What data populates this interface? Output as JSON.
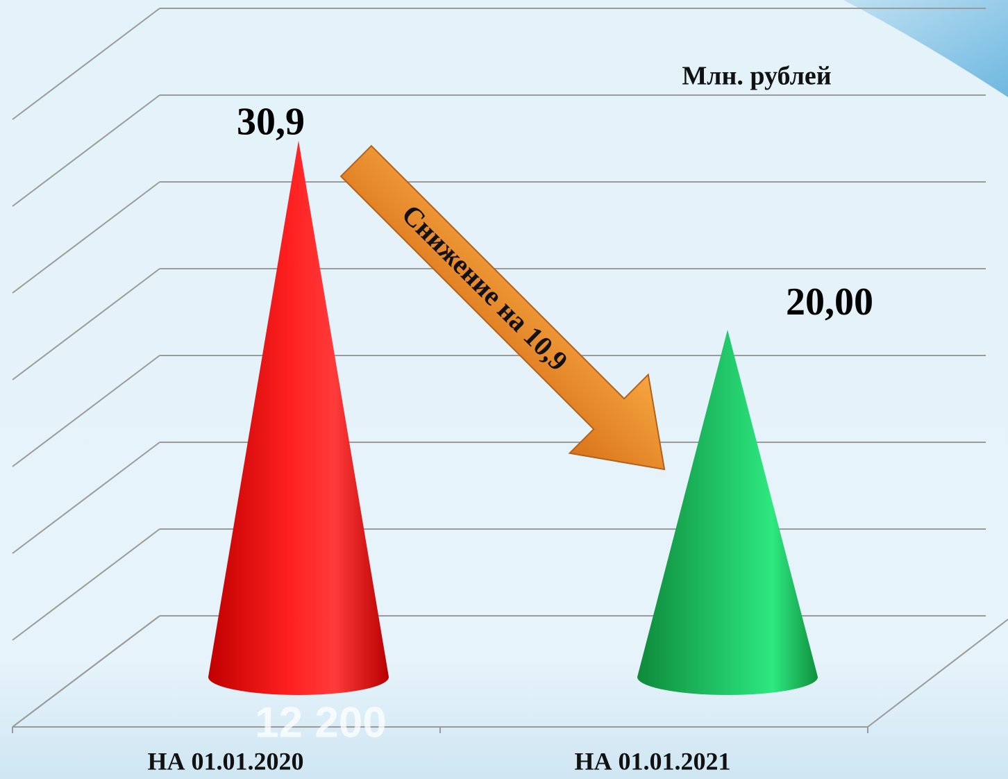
{
  "chart_data": {
    "type": "cone",
    "unit_label": "Млн. рублей",
    "categories": [
      "НА 01.01.2020",
      "НА 01.01.2021"
    ],
    "values": [
      30.9,
      20.0
    ],
    "value_labels": [
      "30,9",
      "20,00"
    ],
    "colors": [
      "#e80000",
      "#15a84a"
    ],
    "ylim": [
      0,
      35
    ],
    "yticks": [
      0,
      5,
      10,
      15,
      20,
      25,
      30,
      35
    ],
    "grid": true,
    "annotations": [
      "Снижение на 10,9",
      "12 200"
    ]
  }
}
